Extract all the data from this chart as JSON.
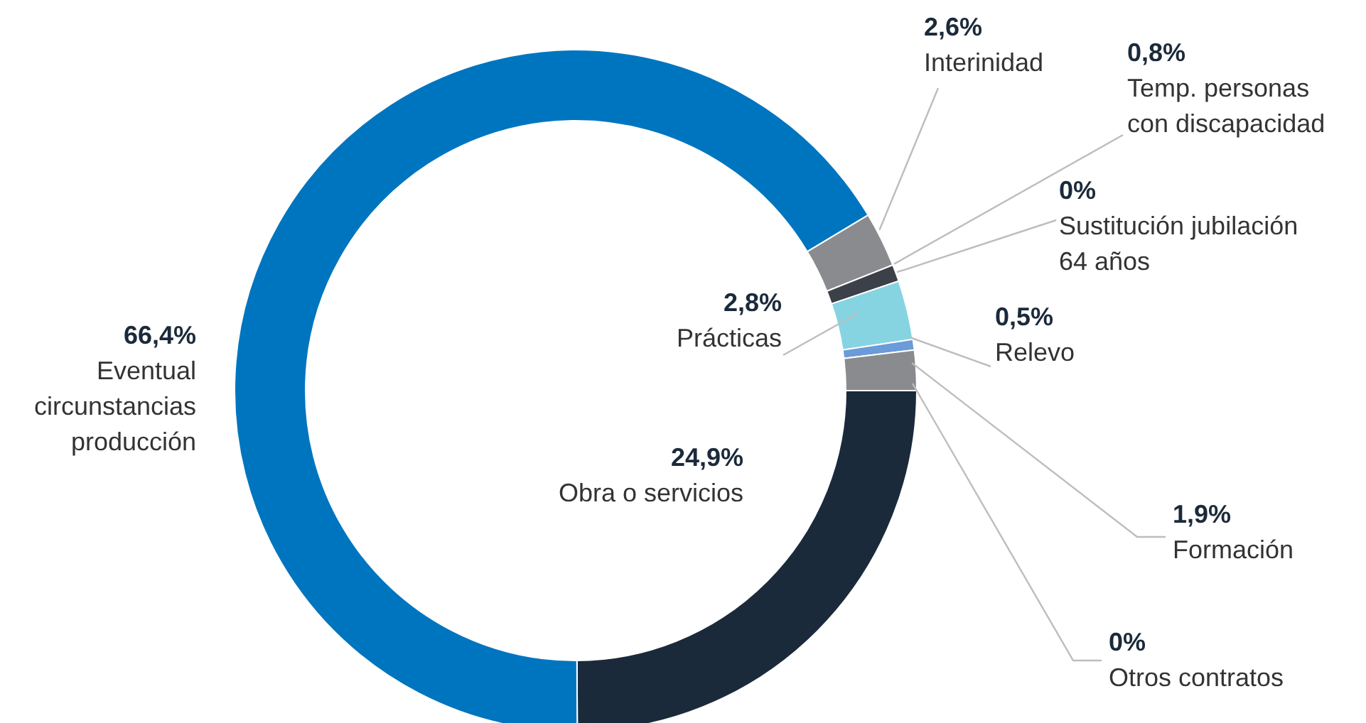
{
  "chart_data": {
    "type": "donut",
    "categories": [
      "Obra o servicios",
      "Eventual\ncircunstancias\nproducción",
      "Interinidad",
      "Temp. personas\ncon discapacidad",
      "Sustitución jubilación\n64 años",
      "Prácticas",
      "Relevo",
      "Formación",
      "Otros contratos"
    ],
    "values": [
      24.9,
      66.4,
      2.6,
      0.8,
      0,
      2.8,
      0.5,
      1.9,
      0
    ],
    "value_labels": [
      "24,9%",
      "66,4%",
      "2,6%",
      "0,8%",
      "0%",
      "2,8%",
      "0,5%",
      "1,9%",
      "0%"
    ],
    "colors": [
      "#1b2a3a",
      "#0075bf",
      "#898b8e",
      "#3c4048",
      "#5a5e66",
      "#86d4e2",
      "#6b9bd8",
      "#898b8e",
      "#2ab3b3"
    ]
  }
}
